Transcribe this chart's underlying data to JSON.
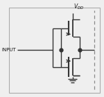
{
  "bg_color": "#efefef",
  "line_color": "#333333",
  "text_color": "#111111",
  "fig_width": 1.5,
  "fig_height": 1.4,
  "dpi": 100,
  "vdd_label": "V",
  "vdd_sub": "DD",
  "input_label": "INPUT",
  "border_color": "#aaaaaa",
  "dash_color": "#888888"
}
